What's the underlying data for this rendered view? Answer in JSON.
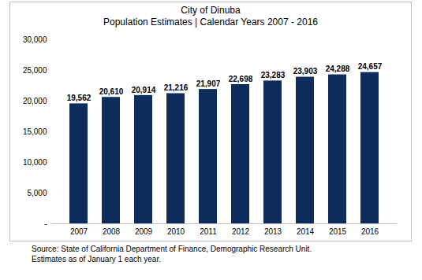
{
  "chart_data": {
    "type": "bar",
    "title": "City of Dinuba",
    "subtitle": "Population Estimates | Calendar Years 2007 - 2016",
    "categories": [
      "2007",
      "2008",
      "2009",
      "2010",
      "2011",
      "2012",
      "2013",
      "2014",
      "2015",
      "2016"
    ],
    "values": [
      19562,
      20610,
      20914,
      21216,
      21907,
      22698,
      23283,
      23903,
      24288,
      24657
    ],
    "value_labels": [
      "19,562",
      "20,610",
      "20,914",
      "21,216",
      "21,907",
      "22,698",
      "23,283",
      "23,903",
      "24,288",
      "24,657"
    ],
    "data_labels": true,
    "color": "#0d2d5c",
    "ylim": [
      0,
      30000
    ],
    "yticks": [
      {
        "value": 0,
        "label": "-"
      },
      {
        "value": 5000,
        "label": "5,000"
      },
      {
        "value": 10000,
        "label": "10,000"
      },
      {
        "value": 15000,
        "label": "15,000"
      },
      {
        "value": 20000,
        "label": "20,000"
      },
      {
        "value": 25000,
        "label": "25,000"
      },
      {
        "value": 30000,
        "label": "30,000"
      }
    ],
    "grid": false,
    "caption": [
      "Source:  State of California Department of Finance, Demographic Research Unit.",
      "Estimates as of January 1 each year."
    ]
  }
}
